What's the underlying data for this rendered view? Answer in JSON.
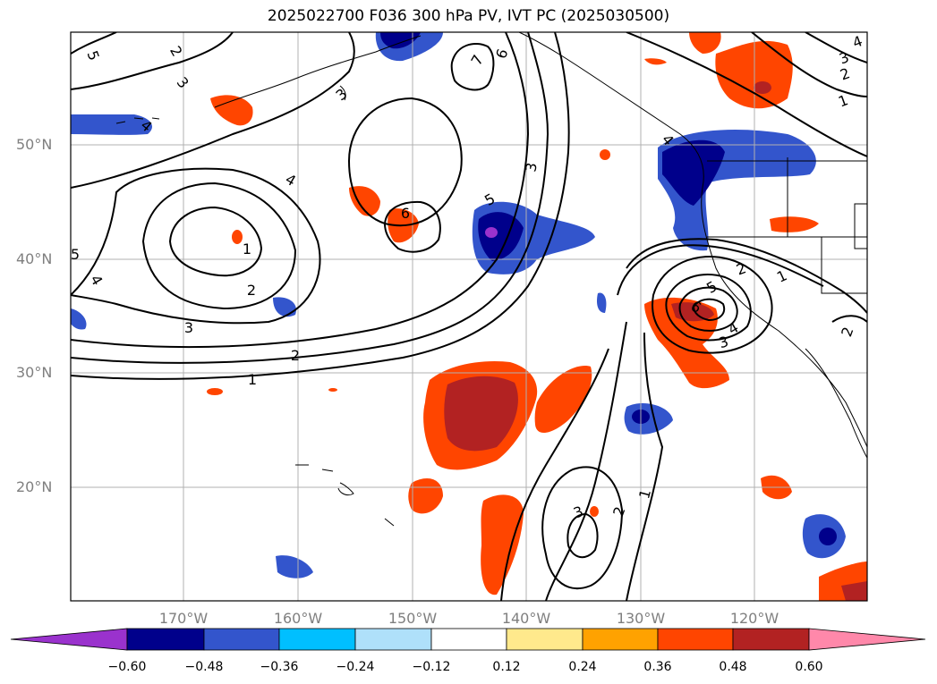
{
  "title": "2025022700 F036 300 hPa PV, IVT PC (2025030500)",
  "axes": {
    "lat_labels": [
      "50°N",
      "40°N",
      "30°N",
      "20°N"
    ],
    "lon_labels": [
      "170°W",
      "160°W",
      "150°W",
      "140°W",
      "130°W",
      "120°W"
    ]
  },
  "colorbar": {
    "ticks": [
      "−0.60",
      "−0.48",
      "−0.36",
      "−0.24",
      "−0.12",
      "0.12",
      "0.24",
      "0.36",
      "0.48",
      "0.60"
    ],
    "colors": [
      "#9a32cd",
      "#00008b",
      "#3355cc",
      "#00bfff",
      "#afe0fa",
      "#ffffff",
      "#ffe98c",
      "#ffa200",
      "#ff4500",
      "#b22222",
      "#ff88aa"
    ],
    "extend": "both"
  },
  "contour_labels": [
    "5",
    "2",
    "3",
    "4",
    "7",
    "6",
    "5",
    "4",
    "3",
    "1",
    "2",
    "3",
    "4",
    "6",
    "5",
    "1",
    "2",
    "3",
    "4",
    "2",
    "1",
    "1",
    "2",
    "3",
    "4",
    "5",
    "6",
    "3",
    "2",
    "1",
    "2",
    "3",
    "4"
  ],
  "colors": {
    "negative_anomaly": "#00008b",
    "positive_anomaly": "#ff4500",
    "contour": "#000000",
    "coastline": "#000000",
    "grid": "#b0b0b0"
  }
}
